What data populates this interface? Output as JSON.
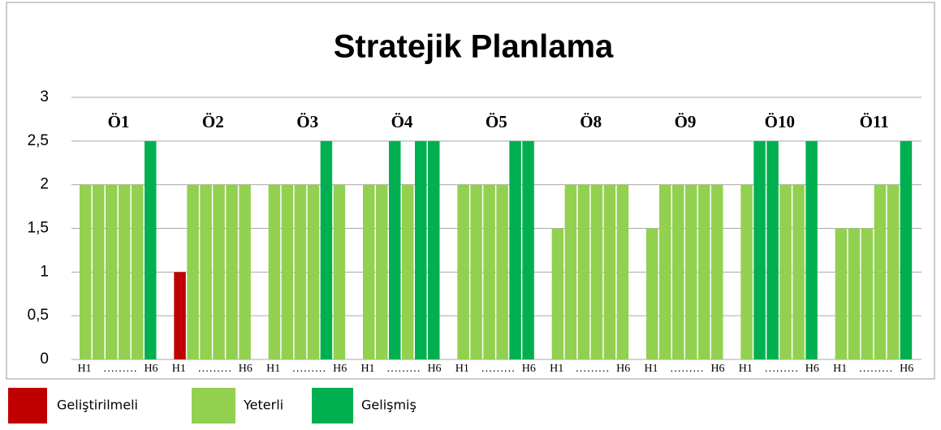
{
  "chart_data": {
    "type": "grouped_bar",
    "title": "Stratejik Planlama",
    "ylim": [
      0,
      3
    ],
    "yticks": [
      0,
      {
        "value": 0.5,
        "label": "0,5"
      },
      1,
      {
        "value": 1.5,
        "label": "1,5"
      },
      2,
      {
        "value": 2.5,
        "label": "2,5"
      },
      3
    ],
    "grid": true,
    "x_label_start": "H1",
    "x_label_fill": "………",
    "x_label_end": "H6",
    "legend": [
      {
        "name": "Geliştirilmeli",
        "color": "#c00000"
      },
      {
        "name": "Yeterli",
        "color": "#92d050"
      },
      {
        "name": "Gelişmiş",
        "color": "#00b050"
      }
    ],
    "groups": [
      {
        "name": "Ö1",
        "values": [
          2,
          2,
          2,
          2,
          2,
          2.5
        ],
        "colors": [
          "#92d050",
          "#92d050",
          "#92d050",
          "#92d050",
          "#92d050",
          "#00b050"
        ]
      },
      {
        "name": "Ö2",
        "values": [
          1,
          2,
          2,
          2,
          2,
          2
        ],
        "colors": [
          "#c00000",
          "#92d050",
          "#92d050",
          "#92d050",
          "#92d050",
          "#92d050"
        ]
      },
      {
        "name": "Ö3",
        "values": [
          2,
          2,
          2,
          2,
          2.5,
          2
        ],
        "colors": [
          "#92d050",
          "#92d050",
          "#92d050",
          "#92d050",
          "#00b050",
          "#92d050"
        ]
      },
      {
        "name": "Ö4",
        "values": [
          2,
          2,
          2.5,
          2,
          2.5,
          2.5
        ],
        "colors": [
          "#92d050",
          "#92d050",
          "#00b050",
          "#92d050",
          "#00b050",
          "#00b050"
        ]
      },
      {
        "name": "Ö5",
        "values": [
          2,
          2,
          2,
          2,
          2.5,
          2.5
        ],
        "colors": [
          "#92d050",
          "#92d050",
          "#92d050",
          "#92d050",
          "#00b050",
          "#00b050"
        ]
      },
      {
        "name": "Ö8",
        "values": [
          1.5,
          2,
          2,
          2,
          2,
          2
        ],
        "colors": [
          "#92d050",
          "#92d050",
          "#92d050",
          "#92d050",
          "#92d050",
          "#92d050"
        ]
      },
      {
        "name": "Ö9",
        "values": [
          1.5,
          2,
          2,
          2,
          2,
          2
        ],
        "colors": [
          "#92d050",
          "#92d050",
          "#92d050",
          "#92d050",
          "#92d050",
          "#92d050"
        ]
      },
      {
        "name": "Ö10",
        "values": [
          2,
          2.5,
          2.5,
          2,
          2,
          2.5
        ],
        "colors": [
          "#92d050",
          "#00b050",
          "#00b050",
          "#92d050",
          "#92d050",
          "#00b050"
        ]
      },
      {
        "name": "Ö11",
        "values": [
          1.5,
          1.5,
          1.5,
          2,
          2,
          2.5
        ],
        "colors": [
          "#92d050",
          "#92d050",
          "#92d050",
          "#92d050",
          "#92d050",
          "#00b050"
        ]
      }
    ]
  }
}
